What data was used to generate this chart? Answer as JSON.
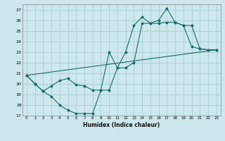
{
  "title": "",
  "xlabel": "Humidex (Indice chaleur)",
  "ylabel": "",
  "background_color": "#cce8ec",
  "grid_color": "#aacdd4",
  "line_color": "#1a6b6b",
  "xlim": [
    -0.5,
    23.5
  ],
  "ylim": [
    17,
    27.5
  ],
  "yticks": [
    17,
    18,
    19,
    20,
    21,
    22,
    23,
    24,
    25,
    26,
    27
  ],
  "xticks": [
    0,
    1,
    2,
    3,
    4,
    5,
    6,
    7,
    8,
    9,
    10,
    11,
    12,
    13,
    14,
    15,
    16,
    17,
    18,
    19,
    20,
    21,
    22,
    23
  ],
  "line1_x": [
    0,
    1,
    2,
    3,
    4,
    5,
    6,
    7,
    8,
    9,
    10,
    11,
    12,
    13,
    14,
    15,
    16,
    17,
    18,
    19,
    20,
    21,
    22,
    23
  ],
  "line1_y": [
    20.8,
    20.0,
    19.3,
    18.8,
    18.0,
    17.5,
    17.2,
    17.2,
    17.2,
    19.4,
    19.4,
    21.5,
    23.0,
    25.5,
    26.3,
    25.7,
    26.0,
    27.1,
    25.8,
    25.5,
    23.5,
    23.3,
    23.2,
    23.2
  ],
  "line2_x": [
    0,
    1,
    2,
    3,
    4,
    5,
    6,
    7,
    8,
    9,
    10,
    11,
    12,
    13,
    14,
    15,
    16,
    17,
    18,
    19,
    20,
    21,
    22,
    23
  ],
  "line2_y": [
    20.8,
    20.0,
    19.3,
    19.8,
    20.3,
    20.5,
    19.9,
    19.8,
    19.4,
    19.4,
    23.0,
    21.5,
    21.5,
    22.0,
    25.7,
    25.7,
    25.7,
    25.8,
    25.8,
    25.5,
    25.5,
    23.3,
    23.2,
    23.2
  ],
  "line3_x": [
    0,
    23
  ],
  "line3_y": [
    20.8,
    23.2
  ]
}
